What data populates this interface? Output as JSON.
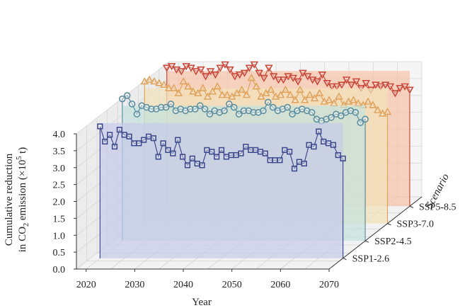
{
  "chart_data": {
    "type": "line",
    "subtype": "3d-stacked-lines",
    "xlabel": "Year",
    "ylabel_line1": "Cumulative reduction",
    "ylabel_line2_prefix": "in CO",
    "ylabel_line2_sub": "2",
    "ylabel_line2_mid": " emission (×10",
    "ylabel_line2_sup": "5",
    "ylabel_line2_suffix": " t)",
    "zlabel": "Scenario",
    "xlim": [
      2018,
      2070
    ],
    "ylim": [
      0,
      4
    ],
    "xticks": [
      "2020",
      "2030",
      "2040",
      "2050",
      "2060",
      "2070"
    ],
    "yticks": [
      "0.0",
      "0.5",
      "1.0",
      "1.5",
      "2.0",
      "2.5",
      "3.0",
      "3.5",
      "4.0"
    ],
    "grid": true,
    "series": [
      {
        "name": "SSP1-2.6",
        "color": "#3f4b8f",
        "fill": "#c6cbe9",
        "marker": "square",
        "x": [
          2020,
          2021,
          2022,
          2023,
          2024,
          2025,
          2026,
          2027,
          2028,
          2029,
          2030,
          2031,
          2032,
          2033,
          2034,
          2035,
          2036,
          2037,
          2038,
          2039,
          2040,
          2041,
          2042,
          2043,
          2044,
          2045,
          2046,
          2047,
          2048,
          2049,
          2050,
          2051,
          2052,
          2053,
          2054,
          2055,
          2056,
          2057,
          2058,
          2059,
          2060,
          2061,
          2062,
          2063,
          2064,
          2065,
          2066,
          2067,
          2068,
          2069,
          2070
        ],
        "values": [
          3.9,
          3.45,
          3.65,
          3.3,
          3.8,
          3.65,
          3.6,
          3.4,
          3.4,
          3.5,
          3.6,
          3.55,
          3.0,
          3.4,
          3.2,
          3.1,
          3.5,
          3.0,
          2.75,
          2.95,
          2.8,
          2.75,
          3.2,
          3.15,
          3.0,
          3.2,
          3.0,
          3.05,
          3.05,
          3.1,
          3.3,
          3.2,
          3.2,
          3.15,
          3.1,
          2.9,
          2.9,
          2.9,
          3.2,
          3.15,
          2.65,
          2.85,
          2.8,
          3.35,
          3.3,
          3.75,
          3.45,
          3.4,
          3.35,
          3.05,
          2.95
        ]
      },
      {
        "name": "SSP2-4.5",
        "color": "#5d8ea0",
        "fill": "#c5e2dd",
        "marker": "circle",
        "x": [
          2020,
          2021,
          2022,
          2023,
          2024,
          2025,
          2026,
          2027,
          2028,
          2029,
          2030,
          2031,
          2032,
          2033,
          2034,
          2035,
          2036,
          2037,
          2038,
          2039,
          2040,
          2041,
          2042,
          2043,
          2044,
          2045,
          2046,
          2047,
          2048,
          2049,
          2050,
          2051,
          2052,
          2053,
          2054,
          2055,
          2056,
          2057,
          2058,
          2059,
          2060,
          2061,
          2062,
          2063,
          2064,
          2065,
          2066,
          2067,
          2068,
          2069,
          2070
        ],
        "values": [
          4.2,
          4.3,
          4.05,
          3.75,
          4.0,
          3.95,
          3.9,
          3.9,
          3.95,
          3.95,
          4.05,
          3.85,
          3.9,
          3.85,
          3.9,
          3.9,
          4.0,
          3.9,
          3.75,
          3.85,
          3.8,
          3.85,
          4.05,
          3.95,
          3.75,
          3.85,
          3.85,
          3.8,
          3.8,
          3.85,
          4.1,
          3.95,
          3.85,
          3.9,
          3.95,
          3.75,
          3.85,
          3.9,
          3.85,
          3.8,
          3.6,
          3.55,
          3.6,
          3.65,
          3.75,
          3.7,
          3.8,
          3.85,
          3.8,
          3.5,
          3.6
        ]
      },
      {
        "name": "SSP3-7.0",
        "color": "#e0a45e",
        "fill": "#f3e2b8",
        "marker": "triangle-up",
        "x": [
          2020,
          2021,
          2022,
          2023,
          2024,
          2025,
          2026,
          2027,
          2028,
          2029,
          2030,
          2031,
          2032,
          2033,
          2034,
          2035,
          2036,
          2037,
          2038,
          2039,
          2040,
          2041,
          2042,
          2043,
          2044,
          2045,
          2046,
          2047,
          2048,
          2049,
          2050,
          2051,
          2052,
          2053,
          2054,
          2055,
          2056,
          2057,
          2058,
          2059,
          2060,
          2061,
          2062,
          2063,
          2064,
          2065,
          2066,
          2067,
          2068,
          2069,
          2070
        ],
        "values": [
          4.2,
          4.25,
          4.2,
          4.15,
          4.1,
          4.0,
          4.0,
          3.85,
          4.2,
          4.05,
          3.9,
          3.85,
          4.0,
          3.75,
          3.9,
          4.05,
          3.8,
          3.8,
          3.75,
          3.85,
          3.95,
          3.8,
          4.3,
          4.05,
          3.75,
          3.85,
          3.95,
          3.75,
          3.8,
          3.95,
          3.8,
          3.65,
          3.95,
          3.65,
          3.8,
          3.7,
          3.85,
          3.6,
          3.65,
          3.55,
          3.75,
          3.5,
          3.6,
          3.65,
          3.55,
          3.5,
          3.6,
          3.5,
          3.35,
          3.25,
          3.3
        ]
      },
      {
        "name": "SSP5-8.5",
        "color": "#c94a3a",
        "fill": "#f6c4a8",
        "marker": "triangle-down",
        "x": [
          2020,
          2021,
          2022,
          2023,
          2024,
          2025,
          2026,
          2027,
          2028,
          2029,
          2030,
          2031,
          2032,
          2033,
          2034,
          2035,
          2036,
          2037,
          2038,
          2039,
          2040,
          2041,
          2042,
          2043,
          2044,
          2045,
          2046,
          2047,
          2048,
          2049,
          2050,
          2051,
          2052,
          2053,
          2054,
          2055,
          2056,
          2057,
          2058,
          2059,
          2060,
          2061,
          2062,
          2063,
          2064,
          2065,
          2066,
          2067,
          2068,
          2069,
          2070
        ],
        "values": [
          4.1,
          4.15,
          4.05,
          4.0,
          4.15,
          4.1,
          4.0,
          4.05,
          3.85,
          4.0,
          3.9,
          4.1,
          4.2,
          4.05,
          3.85,
          3.9,
          3.95,
          4.1,
          4.2,
          3.95,
          3.8,
          4.1,
          3.85,
          3.75,
          3.75,
          3.85,
          3.8,
          3.7,
          3.95,
          3.85,
          3.75,
          3.7,
          3.9,
          3.65,
          3.55,
          3.55,
          3.6,
          3.75,
          3.6,
          3.7,
          3.5,
          3.65,
          3.45,
          3.6,
          3.55,
          3.6,
          3.55,
          3.35,
          3.5,
          3.55,
          3.45
        ]
      }
    ]
  }
}
